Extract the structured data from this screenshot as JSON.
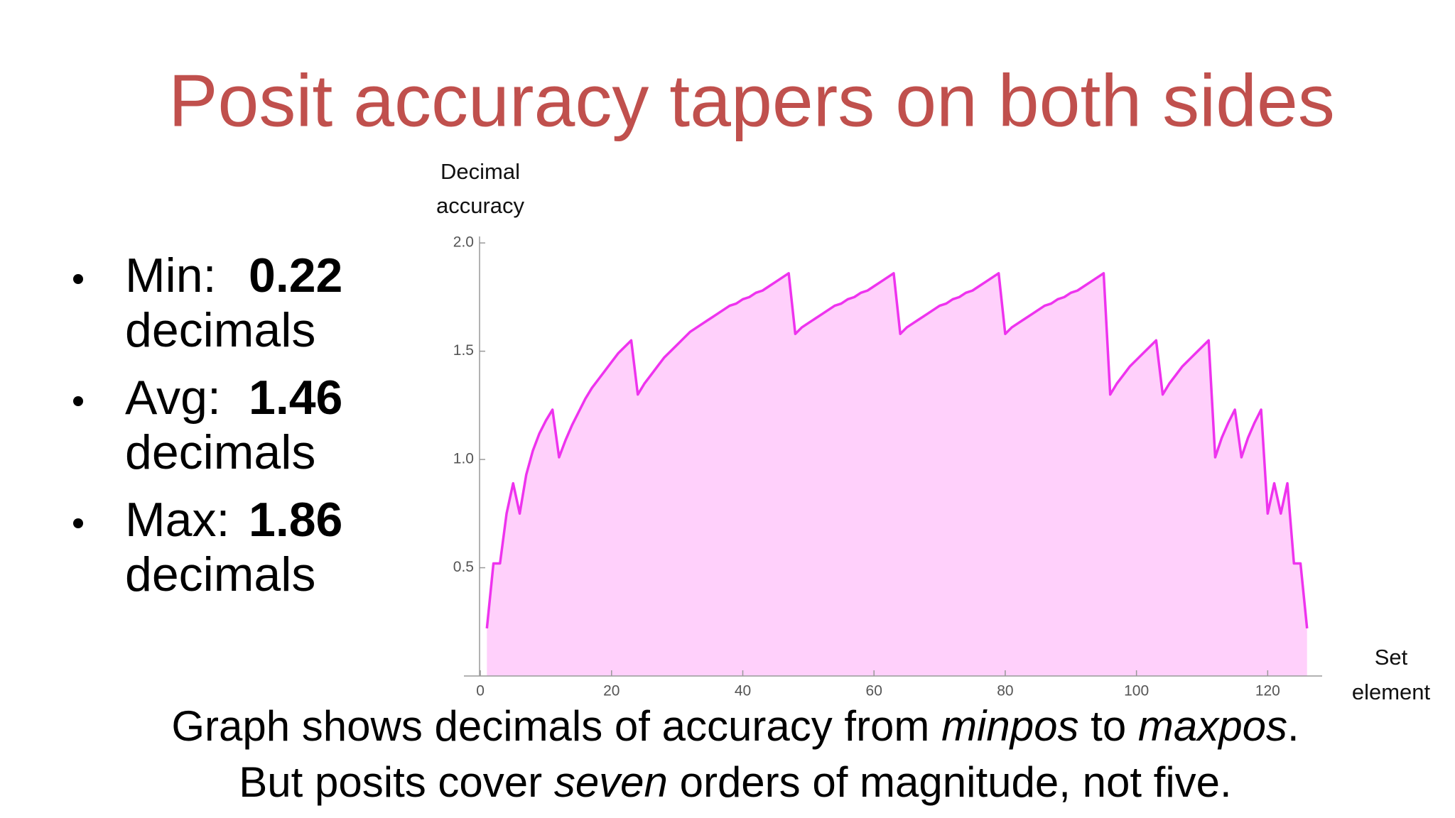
{
  "title": "Posit accuracy tapers on both sides",
  "bullets": [
    {
      "label": "Min:",
      "value": "0.22",
      "unit": "decimals"
    },
    {
      "label": "Avg:",
      "value": "1.46",
      "unit": "decimals"
    },
    {
      "label": "Max:",
      "value": "1.86",
      "unit": "decimals"
    }
  ],
  "caption": [
    [
      {
        "text": "Graph shows decimals of accuracy from ",
        "italic": false
      },
      {
        "text": "minpos",
        "italic": true
      },
      {
        "text": " to ",
        "italic": false
      },
      {
        "text": "maxpos",
        "italic": true
      },
      {
        "text": ".",
        "italic": false
      }
    ],
    [
      {
        "text": "But posits cover ",
        "italic": false
      },
      {
        "text": "seven",
        "italic": true
      },
      {
        "text": " orders of magnitude, not five.",
        "italic": false
      }
    ]
  ],
  "chart_data": {
    "type": "area",
    "ylabel": [
      "Decimal",
      "accuracy"
    ],
    "xlabel": [
      "Set",
      "element"
    ],
    "x": [
      1,
      2,
      3,
      4,
      5,
      6,
      7,
      8,
      9,
      10,
      11,
      12,
      13,
      14,
      15,
      16,
      17,
      18,
      19,
      20,
      21,
      22,
      23,
      24,
      25,
      26,
      27,
      28,
      29,
      30,
      31,
      32,
      33,
      34,
      35,
      36,
      37,
      38,
      39,
      40,
      41,
      42,
      43,
      44,
      45,
      46,
      47,
      48,
      49,
      50,
      51,
      52,
      53,
      54,
      55,
      56,
      57,
      58,
      59,
      60,
      61,
      62,
      63,
      64,
      65,
      66,
      67,
      68,
      69,
      70,
      71,
      72,
      73,
      74,
      75,
      76,
      77,
      78,
      79,
      80,
      81,
      82,
      83,
      84,
      85,
      86,
      87,
      88,
      89,
      90,
      91,
      92,
      93,
      94,
      95,
      96,
      97,
      98,
      99,
      100,
      101,
      102,
      103,
      104,
      105,
      106,
      107,
      108,
      109,
      110,
      111,
      112,
      113,
      114,
      115,
      116,
      117,
      118,
      119,
      120,
      121,
      122,
      123,
      124,
      125,
      126
    ],
    "values": [
      0.22,
      0.52,
      0.52,
      0.75,
      0.89,
      0.75,
      0.93,
      1.04,
      1.12,
      1.18,
      1.23,
      1.01,
      1.09,
      1.16,
      1.22,
      1.28,
      1.33,
      1.37,
      1.41,
      1.45,
      1.49,
      1.52,
      1.55,
      1.3,
      1.35,
      1.39,
      1.43,
      1.47,
      1.5,
      1.53,
      1.56,
      1.59,
      1.61,
      1.63,
      1.65,
      1.67,
      1.69,
      1.71,
      1.72,
      1.74,
      1.75,
      1.77,
      1.78,
      1.8,
      1.82,
      1.84,
      1.86,
      1.58,
      1.61,
      1.63,
      1.65,
      1.67,
      1.69,
      1.71,
      1.72,
      1.74,
      1.75,
      1.77,
      1.78,
      1.8,
      1.82,
      1.84,
      1.86,
      1.58,
      1.61,
      1.63,
      1.65,
      1.67,
      1.69,
      1.71,
      1.72,
      1.74,
      1.75,
      1.77,
      1.78,
      1.8,
      1.82,
      1.84,
      1.86,
      1.58,
      1.61,
      1.63,
      1.65,
      1.67,
      1.69,
      1.71,
      1.72,
      1.74,
      1.75,
      1.77,
      1.78,
      1.8,
      1.82,
      1.84,
      1.86,
      1.3,
      1.35,
      1.39,
      1.43,
      1.46,
      1.49,
      1.52,
      1.55,
      1.3,
      1.35,
      1.39,
      1.43,
      1.46,
      1.49,
      1.52,
      1.55,
      1.01,
      1.1,
      1.17,
      1.23,
      1.01,
      1.1,
      1.17,
      1.23,
      0.75,
      0.89,
      0.75,
      0.89,
      0.52,
      0.52,
      0.22
    ],
    "color": "#ee33ee",
    "fill": "#ffd0fb",
    "xlim": [
      -2.5,
      128.3
    ],
    "ylim": [
      0,
      2.03
    ],
    "xticks": [
      0,
      20,
      40,
      60,
      80,
      100,
      120
    ],
    "yticks": [
      0.5,
      {
        "value": 1.0,
        "label": "1.0"
      },
      1.5,
      {
        "value": 2.0,
        "label": "2.0"
      }
    ]
  }
}
